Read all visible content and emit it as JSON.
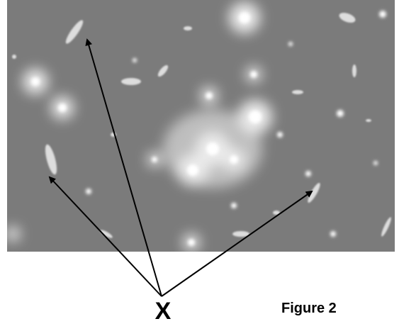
{
  "figure": {
    "label": "X",
    "caption": "Figure 2"
  }
}
